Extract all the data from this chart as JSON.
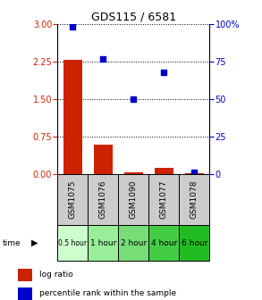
{
  "title": "GDS115 / 6581",
  "samples": [
    "GSM1075",
    "GSM1076",
    "GSM1090",
    "GSM1077",
    "GSM1078"
  ],
  "time_labels": [
    "0.5 hour",
    "1 hour",
    "2 hour",
    "4 hour",
    "6 hour"
  ],
  "log_ratio": [
    2.28,
    0.58,
    0.03,
    0.12,
    0.01
  ],
  "percentile": [
    98,
    77,
    50,
    68,
    1
  ],
  "bar_color": "#cc2200",
  "dot_color": "#0000cc",
  "left_yticks": [
    0,
    0.75,
    1.5,
    2.25,
    3
  ],
  "left_ylim": [
    0,
    3
  ],
  "right_yticks": [
    0,
    25,
    50,
    75,
    100
  ],
  "right_ylim": [
    0,
    100
  ],
  "left_ycolor": "#cc2200",
  "right_ycolor": "#0000cc",
  "background_color": "#ffffff",
  "sample_bg": "#cccccc",
  "time_greens": [
    "#ccffcc",
    "#99ee99",
    "#77dd77",
    "#44cc44",
    "#22bb22"
  ]
}
